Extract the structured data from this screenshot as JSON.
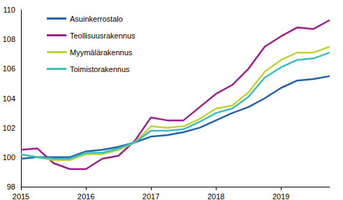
{
  "chart_data": {
    "type": "line",
    "categories": [
      "2015",
      null,
      null,
      null,
      "2016",
      null,
      null,
      null,
      "2017",
      null,
      null,
      null,
      "2018",
      null,
      null,
      null,
      "2019",
      null,
      null,
      null
    ],
    "series": [
      {
        "name": "Asuinkerrostalo",
        "color": "#1f63a8",
        "values": [
          99.9,
          100.0,
          100.0,
          100.0,
          100.4,
          100.5,
          100.7,
          101.0,
          101.4,
          101.5,
          101.7,
          102.0,
          102.5,
          103.0,
          103.4,
          104.0,
          104.7,
          105.2,
          105.3,
          105.5
        ]
      },
      {
        "name": "Teollisuusrakennus",
        "color": "#9c1f8c",
        "values": [
          100.5,
          100.6,
          99.6,
          99.2,
          99.2,
          99.9,
          100.1,
          101.1,
          102.7,
          102.5,
          102.5,
          103.4,
          104.3,
          104.9,
          106.0,
          107.5,
          108.2,
          108.8,
          108.7,
          109.3
        ]
      },
      {
        "name": "Myymälärakennus",
        "color": "#bcd635",
        "values": [
          100.2,
          100.0,
          99.8,
          99.8,
          100.2,
          100.2,
          100.5,
          101.0,
          102.1,
          102.0,
          102.1,
          102.6,
          103.3,
          103.5,
          104.4,
          105.8,
          106.6,
          107.1,
          107.1,
          107.5
        ]
      },
      {
        "name": "Toimistorakennus",
        "color": "#3dbdc0",
        "values": [
          100.2,
          100.0,
          99.9,
          99.9,
          100.3,
          100.3,
          100.6,
          101.0,
          101.8,
          101.8,
          101.9,
          102.4,
          103.0,
          103.3,
          104.1,
          105.4,
          106.1,
          106.6,
          106.7,
          107.1
        ]
      }
    ],
    "ylim": [
      98,
      110
    ],
    "yticks": [
      98,
      100,
      102,
      104,
      106,
      108,
      110
    ],
    "grid": false,
    "legend": "top-left"
  }
}
